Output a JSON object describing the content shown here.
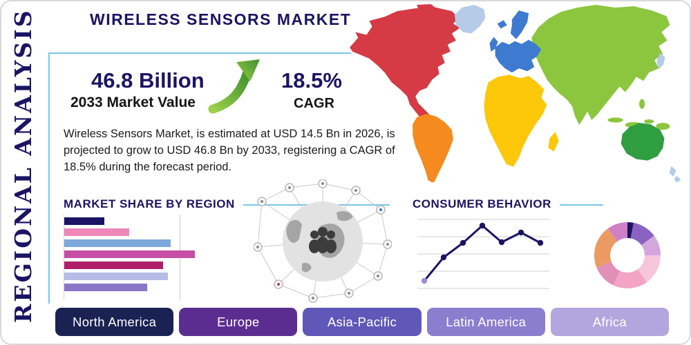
{
  "page": {
    "side_label": "REGIONAL ANALYSIS",
    "title": "WIRELESS SENSORS MARKET",
    "description": "Wireless Sensors Market, is estimated at USD 14.5 Bn in 2026, is projected to grow to USD 46.8 Bn by 2033, registering a CAGR of 18.5% during the forecast period.",
    "accent_navy": "#1b1464",
    "accent_lightblue": "#79c6e6"
  },
  "stats": {
    "value": "46.8 Billion",
    "value_label": "2033 Market Value",
    "cagr": "18.5%",
    "cagr_label": "CAGR",
    "growth_arrow": {
      "icon": "up-right-curved-arrow",
      "color_start": "#9cd04a",
      "color_end": "#3f8f2d"
    }
  },
  "sections": {
    "market_share_title": "MARKET SHARE BY REGION",
    "consumer_behavior_title": "CONSUMER BEHAVIOR"
  },
  "region_buttons": [
    {
      "label": "North America",
      "color": "#1a2253"
    },
    {
      "label": "Europe",
      "color": "#5c2d91"
    },
    {
      "label": "Asia-Pacific",
      "color": "#5f58b8"
    },
    {
      "label": "Latin America",
      "color": "#8b7ece"
    },
    {
      "label": "Africa",
      "color": "#b3a6df"
    }
  ],
  "chart_data": [
    {
      "type": "bar",
      "title": "MARKET SHARE BY REGION",
      "orientation": "horizontal",
      "note": "no axis labels shown; values estimated as percent of chart width",
      "values": [
        25,
        41,
        67,
        82,
        62,
        65,
        52
      ],
      "colors": [
        "#1b1464",
        "#ef87ba",
        "#7fa8dc",
        "#c74da5",
        "#ae1e69",
        "#b5bce8",
        "#8a76c9"
      ],
      "grid": true
    },
    {
      "type": "line",
      "title": "CONSUMER BEHAVIOR",
      "note": "no axis labels shown; values estimated on 0-100 scale",
      "x": [
        1,
        2,
        3,
        4,
        5,
        6,
        7
      ],
      "y": [
        11,
        45,
        66,
        91,
        67,
        81,
        66
      ],
      "line_color": "#1b1464",
      "first_marker_color": "#a08cd8",
      "grid": true,
      "legend": "none"
    },
    {
      "type": "pie",
      "donut": true,
      "note": "no labels shown; slice shares estimated, clockwise from 12 o'clock",
      "values": [
        3,
        12,
        10,
        15,
        17,
        12,
        21,
        10
      ],
      "colors": [
        "#1b1464",
        "#8a63c2",
        "#d4a6de",
        "#f7c6da",
        "#f2a3c6",
        "#e28fb8",
        "#eb9a62",
        "#cf7fc4"
      ]
    }
  ],
  "map": {
    "type": "world-map-by-region",
    "region_colors": {
      "north-america": "#d63a45",
      "arctic-islands": "#d63a45",
      "greenland": "#b6cbe8",
      "south-america": "#f58a1f",
      "europe": "#3f7ad1",
      "scandinavia": "#3f7ad1",
      "uk": "#3f7ad1",
      "iceland": "#3f7ad1",
      "africa": "#fdc70a",
      "madagascar": "#fdc70a",
      "asia": "#8cc63e",
      "indonesia": "#8cc63e",
      "philippines": "#8cc63e",
      "japan": "#b6cbe8",
      "australia": "#2f9e41",
      "new-zealand": "#b6cbe8"
    }
  }
}
